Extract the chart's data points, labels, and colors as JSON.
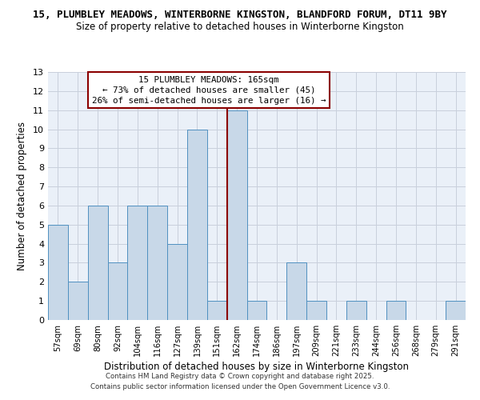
{
  "title_top": "15, PLUMBLEY MEADOWS, WINTERBORNE KINGSTON, BLANDFORD FORUM, DT11 9BY",
  "title_sub": "Size of property relative to detached houses in Winterborne Kingston",
  "xlabel": "Distribution of detached houses by size in Winterborne Kingston",
  "ylabel": "Number of detached properties",
  "bar_labels": [
    "57sqm",
    "69sqm",
    "80sqm",
    "92sqm",
    "104sqm",
    "116sqm",
    "127sqm",
    "139sqm",
    "151sqm",
    "162sqm",
    "174sqm",
    "186sqm",
    "197sqm",
    "209sqm",
    "221sqm",
    "233sqm",
    "244sqm",
    "256sqm",
    "268sqm",
    "279sqm",
    "291sqm"
  ],
  "bar_values": [
    5,
    2,
    6,
    3,
    6,
    6,
    4,
    10,
    1,
    11,
    1,
    0,
    3,
    1,
    0,
    1,
    0,
    1,
    0,
    0,
    1
  ],
  "bar_color": "#c8d8e8",
  "bar_edgecolor": "#5090c0",
  "vline_color": "#8b0000",
  "vline_x_index": 8.5,
  "ylim": [
    0,
    13
  ],
  "yticks": [
    0,
    1,
    2,
    3,
    4,
    5,
    6,
    7,
    8,
    9,
    10,
    11,
    12,
    13
  ],
  "annotation_title": "15 PLUMBLEY MEADOWS: 165sqm",
  "annotation_line1": "← 73% of detached houses are smaller (45)",
  "annotation_line2": "26% of semi-detached houses are larger (16) →",
  "annotation_box_edgecolor": "#8b0000",
  "annotation_box_facecolor": "#ffffff",
  "footer1": "Contains HM Land Registry data © Crown copyright and database right 2025.",
  "footer2": "Contains public sector information licensed under the Open Government Licence v3.0.",
  "plot_bg_color": "#eaf0f8",
  "fig_bg_color": "#ffffff",
  "grid_color": "#c8d0dc"
}
